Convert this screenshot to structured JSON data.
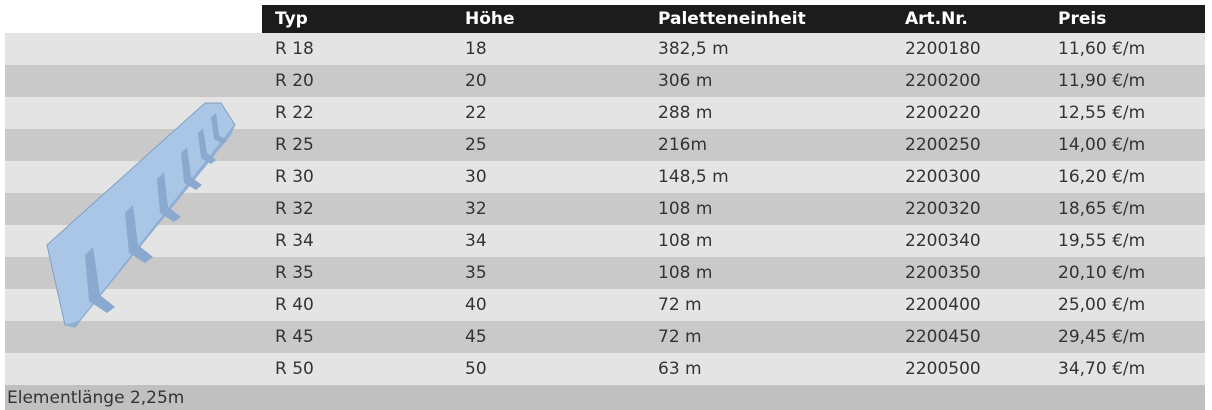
{
  "header": {
    "columns": [
      "Typ",
      "Höhe",
      "Paletteneinheit",
      "Art.Nr.",
      "Preis"
    ]
  },
  "table": {
    "rows": [
      [
        "R 18",
        "18",
        "382,5 m",
        "2200180",
        "11,60 €/m"
      ],
      [
        "R 20",
        "20",
        "306 m",
        "2200200",
        "11,90 €/m"
      ],
      [
        "R 22",
        "22",
        "288 m",
        "2200220",
        "12,55 €/m"
      ],
      [
        "R 25",
        "25",
        "216m",
        "2200250",
        "14,00 €/m"
      ],
      [
        "R 30",
        "30",
        "148,5 m",
        "2200300",
        "16,20 €/m"
      ],
      [
        "R 32",
        "32",
        "108 m",
        "2200320",
        "18,65 €/m"
      ],
      [
        "R 34",
        "34",
        "108 m",
        "2200340",
        "19,55 €/m"
      ],
      [
        "R 35",
        "35",
        "108 m",
        "2200350",
        "20,10 €/m"
      ],
      [
        "R 40",
        "40",
        "72 m",
        "2200400",
        "25,00 €/m"
      ],
      [
        "R 45",
        "45",
        "72 m",
        "2200450",
        "29,45 €/m"
      ],
      [
        "R 50",
        "50",
        "63 m",
        "2200500",
        "34,70 €/m"
      ]
    ]
  },
  "footer": {
    "text": "Elementlänge 2,25m"
  }
}
